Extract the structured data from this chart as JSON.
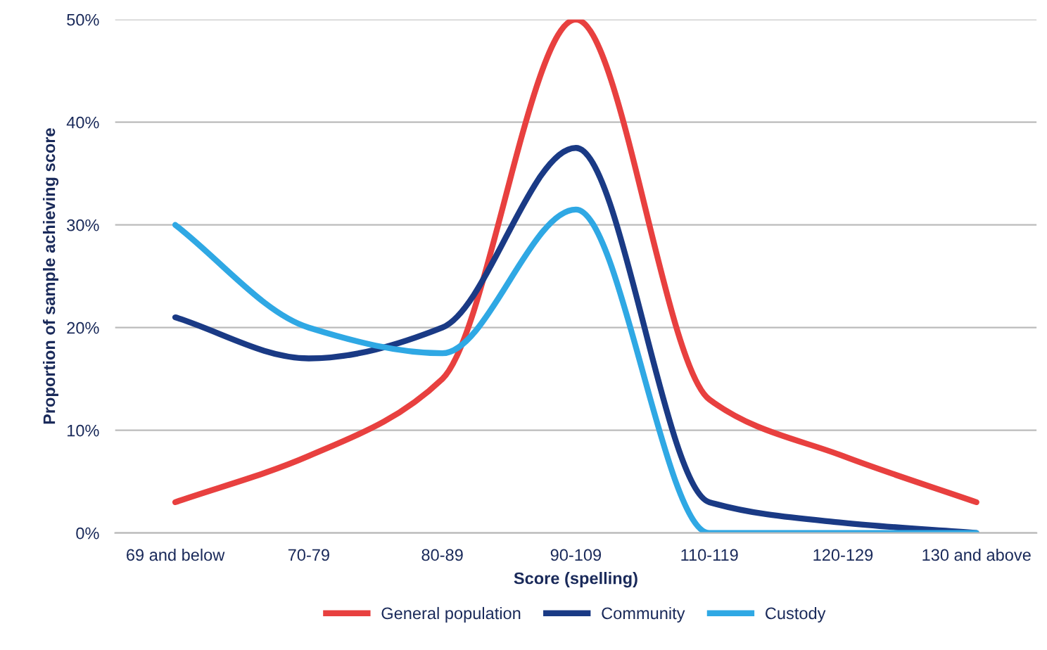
{
  "chart_data": {
    "type": "line",
    "xlabel": "Score (spelling)",
    "ylabel": "Proportion of sample achieving score",
    "categories": [
      "69 and below",
      "70-79",
      "80-89",
      "90-109",
      "110-119",
      "120-129",
      "130 and above"
    ],
    "series": [
      {
        "name": "General population",
        "color": "#e8403f",
        "values": [
          3,
          7.5,
          15,
          50,
          13,
          7.5,
          3
        ]
      },
      {
        "name": "Community",
        "color": "#1a3a85",
        "values": [
          21,
          17,
          20,
          37.5,
          3,
          1,
          0
        ]
      },
      {
        "name": "Custody",
        "color": "#2fa8e4",
        "values": [
          30,
          20,
          17.5,
          31.5,
          0,
          0,
          0
        ]
      }
    ],
    "ylim": [
      0,
      50
    ],
    "yticks": [
      {
        "value": 0,
        "label": "0%"
      },
      {
        "value": 10,
        "label": "10%"
      },
      {
        "value": 20,
        "label": "20%"
      },
      {
        "value": 30,
        "label": "30%"
      },
      {
        "value": 40,
        "label": "40%"
      },
      {
        "value": 50,
        "label": "50%"
      }
    ],
    "grid": "y",
    "legend": "bottom",
    "marker": "none",
    "line_style": "solid"
  }
}
